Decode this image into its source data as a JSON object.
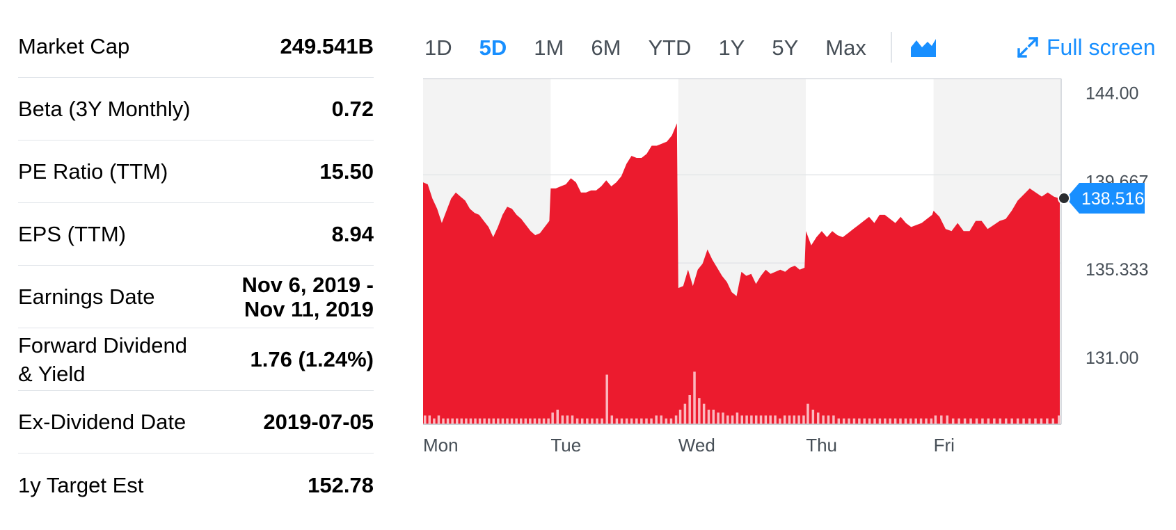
{
  "stats": [
    {
      "label": "Market Cap",
      "value": "249.541B"
    },
    {
      "label": "Beta (3Y Monthly)",
      "value": "0.72"
    },
    {
      "label": "PE Ratio (TTM)",
      "value": "15.50"
    },
    {
      "label": "EPS (TTM)",
      "value": "8.94"
    },
    {
      "label": "Earnings Date",
      "value": "Nov 6, 2019 - Nov 11, 2019"
    },
    {
      "label": "Forward Dividend & Yield",
      "value": "1.76 (1.24%)"
    },
    {
      "label": "Ex-Dividend Date",
      "value": "2019-07-05"
    },
    {
      "label": "1y Target Est",
      "value": "152.78"
    }
  ],
  "chart_controls": {
    "ranges": [
      "1D",
      "5D",
      "1M",
      "6M",
      "YTD",
      "1Y",
      "5Y",
      "Max"
    ],
    "active_range": "5D",
    "chart_type_icon": "area-chart-icon",
    "fullscreen_icon": "expand-icon",
    "fullscreen_label": "Full screen",
    "accent_color": "#188fff"
  },
  "chart_data": {
    "type": "area",
    "title": "",
    "xlabel": "",
    "ylabel": "",
    "x_ticks": [
      "Mon",
      "Tue",
      "Wed",
      "Thu",
      "Fri"
    ],
    "y_ticks": [
      "144.00",
      "139.667",
      "135.333",
      "131.00"
    ],
    "y_tick_values": [
      144.0,
      139.667,
      135.333,
      131.0
    ],
    "ylim": [
      127.4,
      144.4
    ],
    "current_price": "138.516",
    "current_value": 138.516,
    "grid": true,
    "fill_color": "#ec1b2e",
    "volume_color": "#fbb8bf",
    "series": [
      {
        "days": [
          {
            "day": "Mon",
            "values": [
              139.3,
              139.2,
              138.5,
              138.0,
              137.3,
              137.9,
              138.5,
              138.8,
              138.6,
              138.4,
              138.0,
              137.8,
              137.7,
              137.4,
              137.1,
              136.6,
              137.1,
              137.7,
              138.1,
              138.0,
              137.7,
              137.5,
              137.2,
              136.9,
              136.7,
              136.8,
              137.1,
              137.4
            ]
          },
          {
            "day": "Tue",
            "values": [
              139.0,
              139.0,
              139.1,
              139.2,
              139.5,
              139.3,
              138.8,
              138.8,
              138.9,
              138.9,
              139.1,
              139.4,
              139.1,
              139.3,
              139.6,
              140.2,
              140.6,
              140.5,
              140.5,
              140.7,
              141.1,
              141.1,
              141.2,
              141.3,
              141.6,
              142.2
            ]
          },
          {
            "day": "Wed",
            "values": [
              134.1,
              134.2,
              135.0,
              134.2,
              135.0,
              135.3,
              136.0,
              135.5,
              135.1,
              134.7,
              134.4,
              133.9,
              133.7,
              134.9,
              134.7,
              134.8,
              134.3,
              134.7,
              135.0,
              134.8,
              134.9,
              135.0,
              134.9,
              135.1,
              135.2,
              135.0,
              135.1
            ]
          },
          {
            "day": "Thu",
            "values": [
              136.9,
              136.2,
              136.6,
              136.9,
              136.6,
              136.9,
              136.7,
              136.6,
              136.8,
              137.0,
              137.2,
              137.4,
              137.6,
              137.3,
              137.7,
              137.7,
              137.5,
              137.3,
              137.6,
              137.3,
              137.1,
              137.2,
              137.3,
              137.5,
              137.7
            ]
          },
          {
            "day": "Fri",
            "values": [
              137.9,
              137.6,
              137.0,
              136.9,
              137.3,
              136.9,
              136.9,
              137.4,
              137.4,
              137.0,
              137.2,
              137.4,
              137.5,
              137.9,
              138.4,
              138.7,
              139.0,
              138.8,
              138.6,
              138.8,
              138.6,
              138.5
            ]
          }
        ]
      }
    ],
    "volume": [
      {
        "day": "Mon",
        "values": [
          3,
          3,
          2,
          3,
          2,
          2,
          2,
          2,
          2,
          2,
          2,
          2,
          2,
          2,
          2,
          2,
          2,
          2,
          2,
          2,
          2,
          2,
          2,
          2,
          2,
          2,
          2,
          2
        ]
      },
      {
        "day": "Tue",
        "values": [
          4,
          5,
          3,
          3,
          3,
          2,
          2,
          2,
          2,
          2,
          2,
          17,
          3,
          2,
          2,
          2,
          2,
          2,
          2,
          2,
          2,
          3,
          3,
          2,
          2,
          3
        ]
      },
      {
        "day": "Wed",
        "values": [
          5,
          7,
          10,
          18,
          9,
          7,
          5,
          5,
          4,
          4,
          3,
          3,
          4,
          3,
          3,
          3,
          3,
          3,
          3,
          3,
          3,
          2,
          3,
          3,
          3,
          3,
          3
        ]
      },
      {
        "day": "Thu",
        "values": [
          7,
          5,
          4,
          3,
          3,
          3,
          2,
          2,
          2,
          2,
          2,
          2,
          2,
          2,
          2,
          2,
          2,
          2,
          2,
          2,
          2,
          2,
          2,
          2,
          2
        ]
      },
      {
        "day": "Fri",
        "values": [
          3,
          3,
          3,
          2,
          2,
          2,
          2,
          2,
          2,
          2,
          2,
          2,
          2,
          2,
          2,
          2,
          2,
          2,
          2,
          2,
          2,
          3
        ]
      }
    ]
  }
}
